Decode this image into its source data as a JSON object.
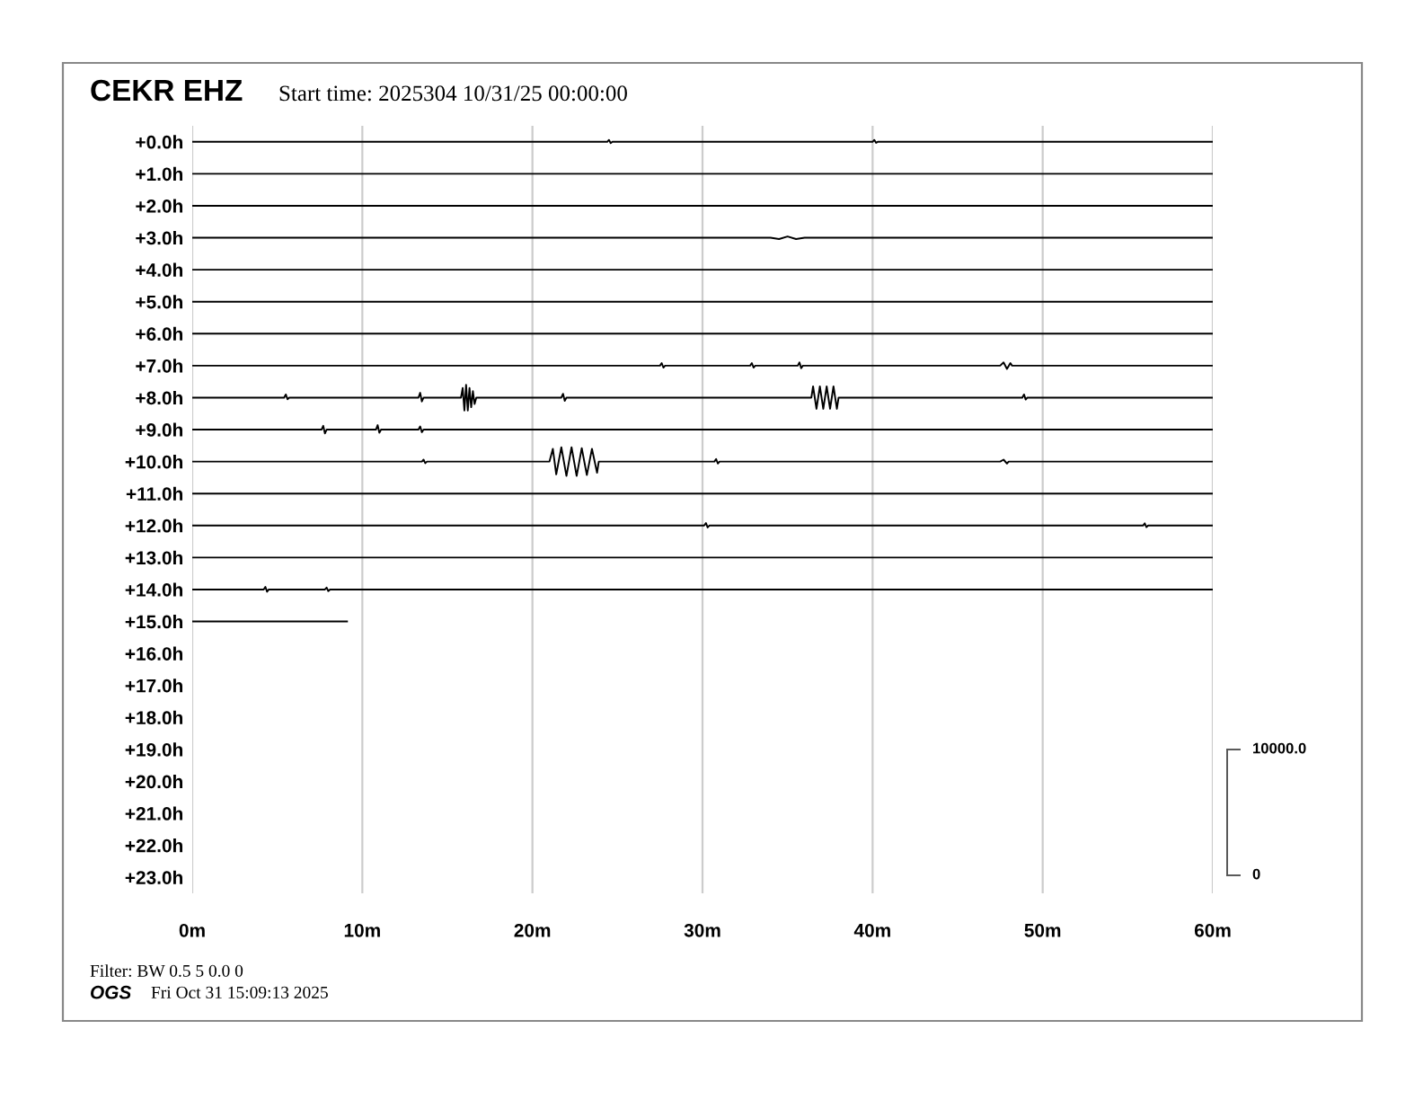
{
  "chart_data": {
    "type": "line",
    "title": "CEKR EHZ",
    "subtitle": "Start time: 2025304 10/31/25 00:00:00",
    "annotations": [
      "Filter: BW 0.5 5 0.0 0",
      "OGS",
      "Fri Oct 31 15:09:13 2025",
      "10000.0",
      "0"
    ],
    "xlim": [
      0,
      60
    ],
    "xticks": [
      {
        "value": 0,
        "label": "0m"
      },
      {
        "value": 10,
        "label": "10m"
      },
      {
        "value": 20,
        "label": "20m"
      },
      {
        "value": 30,
        "label": "30m"
      },
      {
        "value": 40,
        "label": "40m"
      },
      {
        "value": 50,
        "label": "50m"
      },
      {
        "value": 60,
        "label": "60m"
      }
    ],
    "ylim": [
      23.5,
      -0.5
    ],
    "yticks": [
      {
        "value": 0,
        "label": "+0.0h"
      },
      {
        "value": 1,
        "label": "+1.0h"
      },
      {
        "value": 2,
        "label": "+2.0h"
      },
      {
        "value": 3,
        "label": "+3.0h"
      },
      {
        "value": 4,
        "label": "+4.0h"
      },
      {
        "value": 5,
        "label": "+5.0h"
      },
      {
        "value": 6,
        "label": "+6.0h"
      },
      {
        "value": 7,
        "label": "+7.0h"
      },
      {
        "value": 8,
        "label": "+8.0h"
      },
      {
        "value": 9,
        "label": "+9.0h"
      },
      {
        "value": 10,
        "label": "+10.0h"
      },
      {
        "value": 11,
        "label": "+11.0h"
      },
      {
        "value": 12,
        "label": "+12.0h"
      },
      {
        "value": 13,
        "label": "+13.0h"
      },
      {
        "value": 14,
        "label": "+14.0h"
      },
      {
        "value": 15,
        "label": "+15.0h"
      },
      {
        "value": 16,
        "label": "+16.0h"
      },
      {
        "value": 17,
        "label": "+17.0h"
      },
      {
        "value": 18,
        "label": "+18.0h"
      },
      {
        "value": 19,
        "label": "+19.0h"
      },
      {
        "value": 20,
        "label": "+20.0h"
      },
      {
        "value": 21,
        "label": "+21.0h"
      },
      {
        "value": 22,
        "label": "+22.0h"
      },
      {
        "value": 23,
        "label": "+23.0h"
      }
    ],
    "grid": "x",
    "marker": "none",
    "line_style": "solid",
    "series": [
      {
        "color": "#000000",
        "x": [
          0,
          24.4,
          24.5,
          24.6,
          24.7,
          40,
          40.1,
          40.2,
          40.3,
          60
        ],
        "values": [
          0,
          0,
          -0.06,
          0.04,
          0,
          0,
          -0.06,
          0.03,
          0,
          0
        ]
      },
      {
        "color": "#000000",
        "x": [
          0,
          60
        ],
        "values": [
          1,
          1
        ]
      },
      {
        "color": "#000000",
        "x": [
          0,
          60
        ],
        "values": [
          2,
          2
        ]
      },
      {
        "color": "#000000",
        "x": [
          0,
          34,
          34.5,
          35,
          35.5,
          36,
          60
        ],
        "values": [
          3,
          3,
          3.04,
          2.96,
          3.04,
          3,
          3
        ]
      },
      {
        "color": "#000000",
        "x": [
          0,
          60
        ],
        "values": [
          4,
          4
        ]
      },
      {
        "color": "#000000",
        "x": [
          0,
          60
        ],
        "values": [
          5,
          5
        ]
      },
      {
        "color": "#000000",
        "x": [
          0,
          60
        ],
        "values": [
          6,
          6
        ]
      },
      {
        "color": "#000000",
        "x": [
          0,
          27.5,
          27.6,
          27.7,
          27.8,
          32.8,
          32.9,
          33,
          33.1,
          35.6,
          35.7,
          35.8,
          35.9,
          47.5,
          47.7,
          47.9,
          48.1,
          48.2,
          60
        ],
        "values": [
          7,
          7,
          6.92,
          7.06,
          7,
          7,
          6.92,
          7.06,
          7,
          7,
          6.9,
          7.08,
          7,
          7,
          6.9,
          7.1,
          6.92,
          7,
          7
        ]
      },
      {
        "color": "#000000",
        "x": [
          0,
          5.4,
          5.5,
          5.6,
          5.7,
          13.3,
          13.4,
          13.5,
          13.6,
          15.8,
          15.9,
          16,
          16.1,
          16.2,
          16.3,
          16.4,
          16.5,
          16.6,
          16.7,
          21.7,
          21.8,
          21.9,
          22,
          36.4,
          36.5,
          36.7,
          36.9,
          37.1,
          37.3,
          37.5,
          37.7,
          37.9,
          38,
          48.8,
          48.9,
          49,
          49.1,
          60
        ],
        "values": [
          8,
          8,
          7.9,
          8.05,
          8,
          8,
          7.85,
          8.12,
          8,
          8,
          7.7,
          8.4,
          7.6,
          8.4,
          7.7,
          8.3,
          7.8,
          8.2,
          8,
          8,
          7.88,
          8.1,
          8,
          8,
          7.65,
          8.35,
          7.65,
          8.35,
          7.65,
          8.35,
          7.65,
          8.35,
          8,
          8,
          7.9,
          8.06,
          8,
          8
        ]
      },
      {
        "color": "#000000",
        "x": [
          0,
          7.6,
          7.7,
          7.8,
          7.9,
          10.8,
          10.9,
          11,
          11.1,
          13.3,
          13.4,
          13.5,
          13.6,
          60
        ],
        "values": [
          9,
          9,
          8.88,
          9.12,
          9,
          9,
          8.86,
          9.1,
          9,
          9,
          8.9,
          9.08,
          9,
          9
        ]
      },
      {
        "color": "#000000",
        "x": [
          0,
          13.5,
          13.6,
          13.7,
          13.8,
          21,
          21.2,
          21.4,
          21.7,
          22,
          22.3,
          22.6,
          22.9,
          23.2,
          23.5,
          23.8,
          23.9,
          30.7,
          30.8,
          30.9,
          31,
          47.5,
          47.7,
          47.9,
          48,
          60
        ],
        "values": [
          10,
          10,
          9.94,
          10.05,
          10,
          10,
          9.6,
          10.4,
          9.55,
          10.45,
          9.55,
          10.45,
          9.58,
          10.42,
          9.6,
          10.35,
          10,
          10,
          9.92,
          10.06,
          10,
          10,
          9.94,
          10.06,
          10,
          10
        ]
      },
      {
        "color": "#000000",
        "x": [
          0,
          60
        ],
        "values": [
          11,
          11
        ]
      },
      {
        "color": "#000000",
        "x": [
          0,
          30.1,
          30.2,
          30.3,
          30.4,
          55.9,
          56,
          56.1,
          56.2,
          60
        ],
        "values": [
          12,
          12,
          11.92,
          12.06,
          12,
          12,
          11.93,
          12.05,
          12,
          12
        ]
      },
      {
        "color": "#000000",
        "x": [
          0,
          60
        ],
        "values": [
          13,
          13
        ]
      },
      {
        "color": "#000000",
        "x": [
          0,
          4.2,
          4.3,
          4.4,
          4.5,
          7.8,
          7.9,
          8,
          8.1,
          60
        ],
        "values": [
          14,
          14,
          13.92,
          14.07,
          14,
          14,
          13.94,
          14.05,
          14,
          14
        ]
      },
      {
        "color": "#000000",
        "x": [
          0,
          9.1
        ],
        "values": [
          15,
          15
        ]
      }
    ]
  }
}
